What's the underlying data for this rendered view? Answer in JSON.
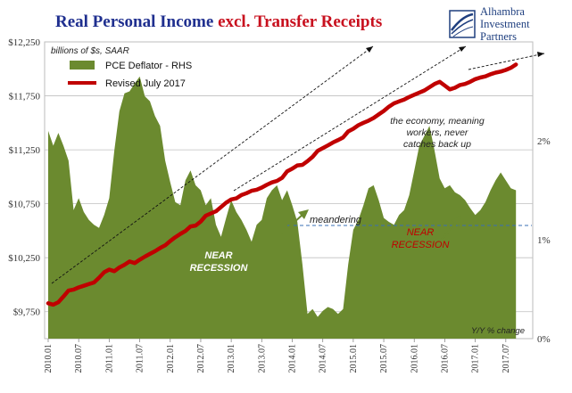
{
  "title": {
    "part1": "Real Personal Income ",
    "part2": "excl. Transfer Receipts",
    "color1": "#1f2f8f",
    "color2": "#c8101e"
  },
  "logo": {
    "line1": "Alhambra",
    "line2": "Investment",
    "line3": "Partners",
    "color": "#1f3f7f"
  },
  "chart_data": {
    "type": "line",
    "units_label": "billions of $s, SAAR",
    "x_ticks": [
      "2010.01",
      "2010.07",
      "2011.01",
      "2011.07",
      "2012.01",
      "2012.07",
      "2013.01",
      "2013.07",
      "2014.01",
      "2014.07",
      "2015.01",
      "2015.07",
      "2016.01",
      "2016.07",
      "2017.01",
      "2017.07"
    ],
    "left_axis": {
      "ticks": [
        "$9,750",
        "$10,250",
        "$10,750",
        "$11,250",
        "$11,750",
        "$12,250"
      ],
      "ylim": [
        9500,
        12250
      ]
    },
    "right_axis": {
      "ticks": [
        "0%",
        "1%",
        "2%"
      ],
      "ylim": [
        0,
        0.03
      ]
    },
    "grid": true,
    "legend": "top-left",
    "series": [
      {
        "name": "PCE Deflator - RHS",
        "type": "area",
        "axis": "right",
        "color": "#6b8a2f",
        "x": [
          0,
          1,
          2,
          3,
          4,
          5,
          6,
          7,
          8,
          9,
          10,
          11,
          12,
          13,
          14,
          15,
          16,
          17,
          18,
          19,
          20,
          21,
          22,
          23,
          24,
          25,
          26,
          27,
          28,
          29,
          30,
          31,
          32,
          33,
          34,
          35,
          36,
          37,
          38,
          39,
          40,
          41,
          42,
          43,
          44,
          45,
          46,
          47,
          48,
          49,
          50,
          51,
          52,
          53,
          54,
          55,
          56,
          57,
          58,
          59,
          60,
          61,
          62,
          63,
          64,
          65,
          66,
          67,
          68,
          69,
          70,
          71,
          72,
          73,
          74,
          75,
          76,
          77,
          78,
          79,
          80,
          81,
          82,
          83,
          84,
          85,
          86,
          87,
          88,
          89,
          90,
          91,
          92
        ],
        "values": [
          0.021,
          0.0195,
          0.0208,
          0.0195,
          0.018,
          0.013,
          0.0142,
          0.0128,
          0.012,
          0.0115,
          0.0112,
          0.0125,
          0.0142,
          0.019,
          0.023,
          0.0248,
          0.025,
          0.0258,
          0.0265,
          0.0245,
          0.024,
          0.0225,
          0.0215,
          0.018,
          0.0158,
          0.0138,
          0.0135,
          0.016,
          0.017,
          0.0155,
          0.015,
          0.0135,
          0.0142,
          0.0115,
          0.0103,
          0.0122,
          0.014,
          0.0128,
          0.012,
          0.011,
          0.0098,
          0.0115,
          0.012,
          0.0142,
          0.015,
          0.0155,
          0.014,
          0.015,
          0.0135,
          0.0118,
          0.0075,
          0.0025,
          0.003,
          0.0022,
          0.0028,
          0.0032,
          0.003,
          0.0025,
          0.003,
          0.0075,
          0.011,
          0.012,
          0.0135,
          0.0152,
          0.0155,
          0.014,
          0.0122,
          0.0118,
          0.0115,
          0.0125,
          0.013,
          0.0145,
          0.017,
          0.0195,
          0.0205,
          0.0215,
          0.019,
          0.0162,
          0.0152,
          0.0155,
          0.0148,
          0.0145,
          0.014,
          0.0132,
          0.0125,
          0.013,
          0.0138,
          0.015,
          0.016,
          0.0168,
          0.016,
          0.0152,
          0.015
        ]
      },
      {
        "name": "Revised July 2017",
        "type": "line",
        "axis": "left",
        "color": "#c00000",
        "x": [
          0,
          1,
          2,
          3,
          4,
          5,
          6,
          7,
          8,
          9,
          10,
          11,
          12,
          13,
          14,
          15,
          16,
          17,
          18,
          19,
          20,
          21,
          22,
          23,
          24,
          25,
          26,
          27,
          28,
          29,
          30,
          31,
          32,
          33,
          34,
          35,
          36,
          37,
          38,
          39,
          40,
          41,
          42,
          43,
          44,
          45,
          46,
          47,
          48,
          49,
          50,
          51,
          52,
          53,
          54,
          55,
          56,
          57,
          58,
          59,
          60,
          61,
          62,
          63,
          64,
          65,
          66,
          67,
          68,
          69,
          70,
          71,
          72,
          73,
          74,
          75,
          76,
          77,
          78,
          79,
          80,
          81,
          82,
          83,
          84,
          85,
          86,
          87,
          88,
          89,
          90,
          91,
          92
        ],
        "values": [
          9828,
          9815,
          9838,
          9890,
          9945,
          9955,
          9975,
          9990,
          10005,
          10020,
          10065,
          10115,
          10140,
          10125,
          10160,
          10185,
          10215,
          10200,
          10232,
          10260,
          10285,
          10310,
          10340,
          10365,
          10405,
          10440,
          10470,
          10498,
          10540,
          10548,
          10585,
          10640,
          10660,
          10680,
          10720,
          10760,
          10790,
          10800,
          10830,
          10848,
          10870,
          10880,
          10900,
          10925,
          10948,
          10962,
          10990,
          11050,
          11075,
          11105,
          11110,
          11145,
          11185,
          11240,
          11265,
          11290,
          11318,
          11340,
          11365,
          11420,
          11445,
          11478,
          11500,
          11520,
          11545,
          11578,
          11610,
          11650,
          11680,
          11698,
          11715,
          11740,
          11760,
          11780,
          11800,
          11830,
          11860,
          11880,
          11845,
          11810,
          11825,
          11850,
          11860,
          11880,
          11905,
          11920,
          11930,
          11950,
          11965,
          11975,
          11990,
          12010,
          12040
        ]
      }
    ],
    "annotations": [
      {
        "text": "NEAR",
        "color": "#ffffff"
      },
      {
        "text": "RECESSION",
        "color": "#ffffff"
      },
      {
        "text": "NEAR",
        "color": "#c00000"
      },
      {
        "text": "RECESSION",
        "color": "#c00000"
      },
      {
        "text": "meandering",
        "color": "#3a6fb5"
      },
      {
        "text": "the economy, meaning",
        "color": "#222222"
      },
      {
        "text": "workers, never",
        "color": "#222222"
      },
      {
        "text": "catches back up",
        "color": "#222222"
      },
      {
        "text": "Y/Y % change",
        "color": "#ffffff"
      }
    ]
  }
}
